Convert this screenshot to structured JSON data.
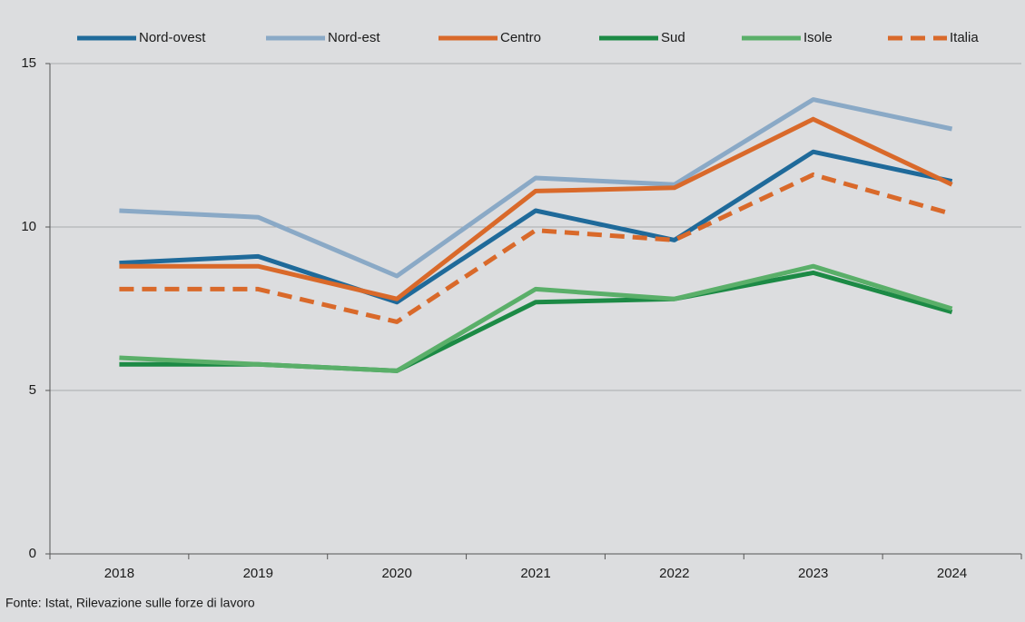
{
  "chart_data": {
    "type": "line",
    "source": "Fonte: Istat, Rilevazione sulle forze di lavoro",
    "categories": [
      "2018",
      "2019",
      "2020",
      "2021",
      "2022",
      "2023",
      "2024"
    ],
    "series": [
      {
        "name": "Nord-ovest",
        "color": "#1f6a9a",
        "style": "solid",
        "values": [
          8.9,
          9.1,
          7.7,
          10.5,
          9.6,
          12.3,
          11.4
        ]
      },
      {
        "name": "Nord-est",
        "color": "#8aa9c6",
        "style": "solid",
        "values": [
          10.5,
          10.3,
          8.5,
          11.5,
          11.3,
          13.9,
          13.0
        ]
      },
      {
        "name": "Centro",
        "color": "#d9692a",
        "style": "solid",
        "values": [
          8.8,
          8.8,
          7.8,
          11.1,
          11.2,
          13.3,
          11.3
        ]
      },
      {
        "name": "Sud",
        "color": "#1c8a45",
        "style": "solid",
        "values": [
          5.8,
          5.8,
          5.6,
          7.7,
          7.8,
          8.6,
          7.4
        ]
      },
      {
        "name": "Isole",
        "color": "#5aaf69",
        "style": "solid",
        "values": [
          6.0,
          5.8,
          5.6,
          8.1,
          7.8,
          8.8,
          7.5
        ]
      },
      {
        "name": "Italia",
        "color": "#d9692a",
        "style": "dashed",
        "values": [
          8.1,
          8.1,
          7.1,
          9.9,
          9.6,
          11.6,
          10.4
        ]
      }
    ],
    "ylim": [
      0,
      15
    ],
    "yticks": [
      0,
      5,
      10,
      15
    ],
    "grid": true,
    "legend": "top"
  }
}
